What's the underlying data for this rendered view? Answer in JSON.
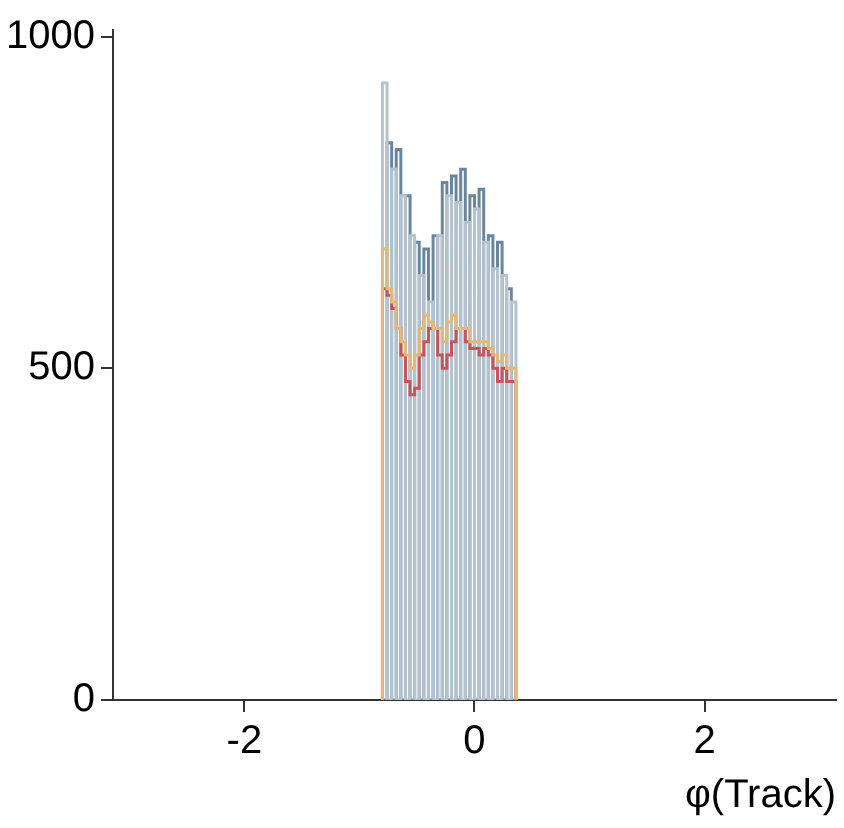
{
  "chart_data": {
    "type": "histogram",
    "xlabel": "φ(Track)",
    "bins": [
      -0.8,
      -0.76,
      -0.72,
      -0.68,
      -0.64,
      -0.6,
      -0.56,
      -0.52,
      -0.48,
      -0.44,
      -0.4,
      -0.36,
      -0.32,
      -0.28,
      -0.24,
      -0.2,
      -0.16,
      -0.12,
      -0.08,
      -0.04,
      0,
      0.04,
      0.08,
      0.12,
      0.16,
      0.2,
      0.24,
      0.28,
      0.32,
      0.36
    ],
    "series": [
      {
        "color": "#e3b97a",
        "values": [
          680,
          620,
          600,
          560,
          540,
          520,
          500,
          520,
          560,
          580,
          570,
          560,
          560,
          540,
          570,
          580,
          560,
          560,
          560,
          540,
          540,
          540,
          540,
          530,
          520,
          510,
          520,
          500,
          500
        ]
      },
      {
        "color": "#c8555a",
        "values": [
          620,
          610,
          590,
          560,
          520,
          480,
          460,
          470,
          520,
          540,
          560,
          560,
          520,
          500,
          520,
          540,
          560,
          560,
          540,
          530,
          530,
          520,
          530,
          520,
          500,
          480,
          500,
          480,
          480
        ]
      },
      {
        "color": "#b4c3cf",
        "values": [
          930,
          0,
          800,
          0,
          760,
          0,
          700,
          0,
          640,
          0,
          600,
          0,
          700,
          0,
          760,
          0,
          750,
          0,
          720,
          0,
          740,
          0,
          690,
          0,
          650,
          0,
          640,
          0,
          600
        ]
      },
      {
        "color": "#6a869e",
        "values": [
          0,
          840,
          0,
          830,
          0,
          760,
          0,
          690,
          0,
          680,
          0,
          700,
          0,
          780,
          0,
          790,
          0,
          800,
          0,
          760,
          0,
          770,
          0,
          700,
          0,
          690,
          0,
          620,
          0
        ]
      }
    ],
    "xlim": [
      -3.1416,
      3.1416
    ],
    "xticks": [
      -2,
      0,
      2
    ],
    "ylim": [
      0,
      1010
    ],
    "yticks": [
      0,
      500,
      1000
    ],
    "grid": false,
    "legend": false
  }
}
